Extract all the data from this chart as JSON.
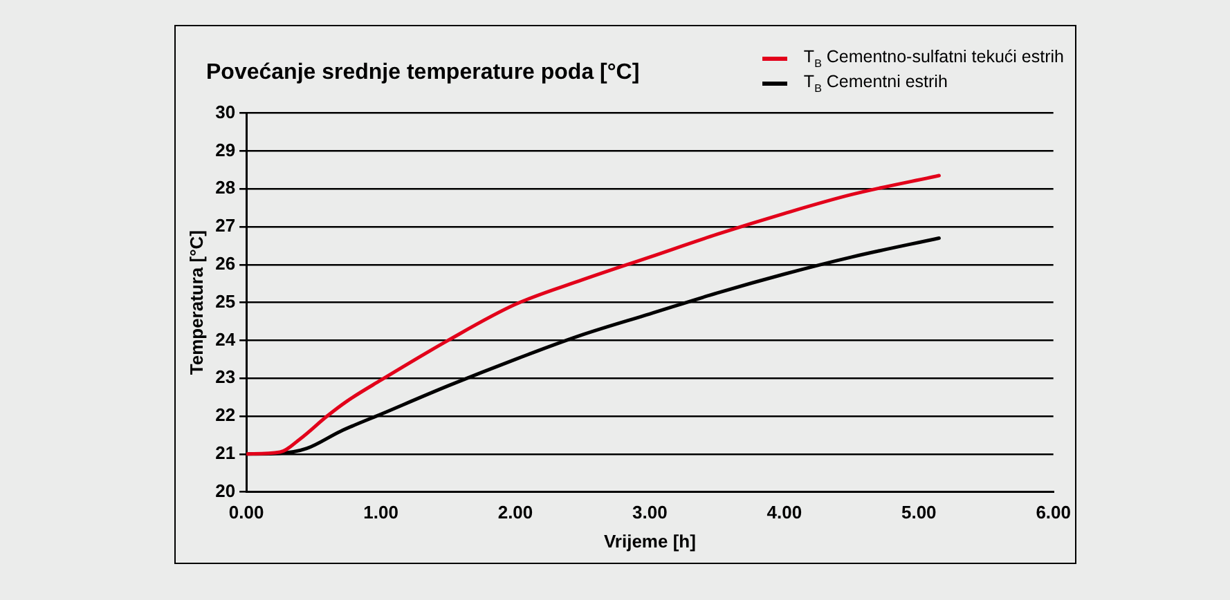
{
  "chart_data": {
    "type": "line",
    "title": "Povećanje srednje temperature poda [°C]",
    "xlabel": "Vrijeme [h]",
    "ylabel": "Temperatura [°C]",
    "xlim": [
      0,
      6
    ],
    "xticks": [
      {
        "value": 0,
        "label": "0.00"
      },
      {
        "value": 1,
        "label": "1.00"
      },
      {
        "value": 2,
        "label": "2.00"
      },
      {
        "value": 3,
        "label": "3.00"
      },
      {
        "value": 4,
        "label": "4.00"
      },
      {
        "value": 5,
        "label": "5.00"
      },
      {
        "value": 6,
        "label": "6.00"
      }
    ],
    "ylim": [
      20,
      30
    ],
    "yticks": [
      20,
      21,
      22,
      23,
      24,
      25,
      26,
      27,
      28,
      29,
      30
    ],
    "grid": "y",
    "legend": "top right",
    "marker": "none",
    "line_style": "solid",
    "series": [
      {
        "name": "T$_{B}$ Cementno-sulfatni tekući estrih",
        "color": "#e2001a",
        "x": [
          0,
          0.25,
          0.4,
          0.6,
          0.75,
          1,
          1.5,
          2,
          2.5,
          3,
          3.5,
          4,
          4.5,
          5.15
        ],
        "values": [
          21,
          21.05,
          21.4,
          22,
          22.4,
          22.95,
          24,
          24.95,
          25.6,
          26.2,
          26.8,
          27.35,
          27.85,
          28.35
        ]
      },
      {
        "name": "T$_{B}$ Cementni estrih",
        "color": "#000000",
        "x": [
          0,
          0.25,
          0.45,
          0.7,
          1,
          1.5,
          2,
          2.5,
          3,
          3.5,
          4,
          4.5,
          5.15
        ],
        "values": [
          21,
          21.02,
          21.15,
          21.6,
          22.05,
          22.8,
          23.5,
          24.15,
          24.7,
          25.25,
          25.75,
          26.2,
          26.7
        ]
      }
    ]
  }
}
